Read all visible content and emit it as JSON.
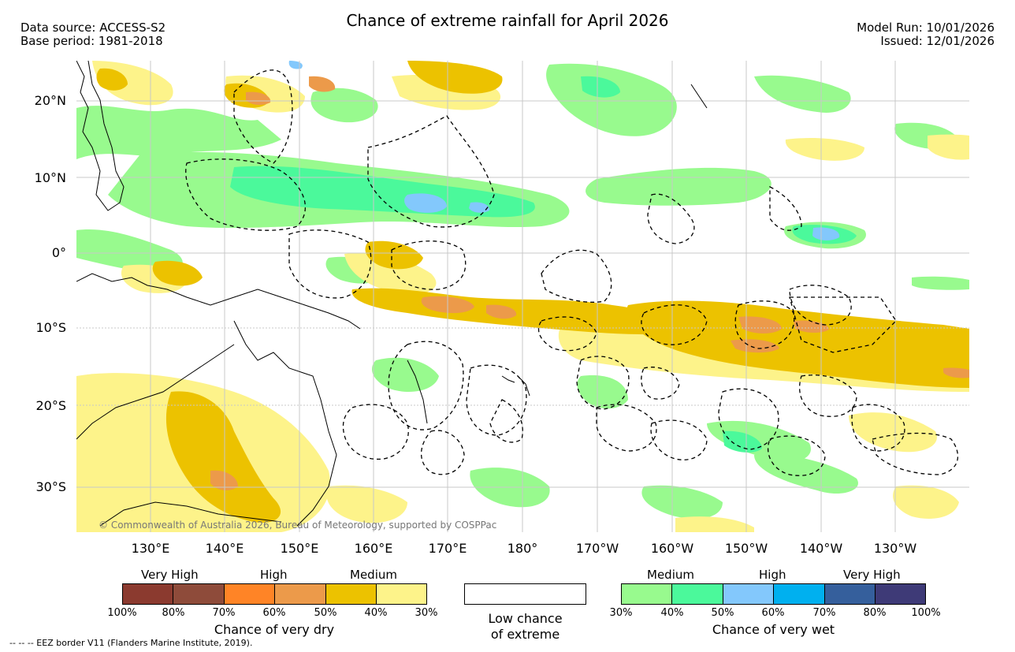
{
  "header": {
    "title": "Chance of extreme rainfall for April 2026",
    "data_source": "Data source: ACCESS-S2",
    "base_period": "Base period: 1981-2018",
    "model_run": "Model Run: 10/01/2026",
    "issued": "Issued: 12/01/2026"
  },
  "map": {
    "lat_labels": [
      "20°N",
      "10°N",
      "0°",
      "10°S",
      "20°S",
      "30°S"
    ],
    "lon_labels": [
      "130°E",
      "140°E",
      "150°E",
      "160°E",
      "170°E",
      "180°",
      "170°W",
      "160°W",
      "150°W",
      "140°W",
      "130°W"
    ],
    "copyright": "© Commonwealth of Australia 2026, Bureau of Meteorology, supported by COSPPac"
  },
  "legend": {
    "dry": {
      "headings": [
        "Very High",
        "High",
        "Medium"
      ],
      "colors": [
        "#8b3a2f",
        "#8e4b3a",
        "#ff8426",
        "#ec9a4a",
        "#ecc200",
        "#fdf38a"
      ],
      "ticks": [
        "100%",
        "80%",
        "70%",
        "60%",
        "50%",
        "40%",
        "30%"
      ],
      "title": "Chance of very dry"
    },
    "low": {
      "color": "#ffffff",
      "title_line1": "Low chance",
      "title_line2": "of extreme"
    },
    "wet": {
      "headings": [
        "Medium",
        "High",
        "Very High"
      ],
      "colors": [
        "#98fa8e",
        "#4bf99b",
        "#83c8fc",
        "#00b0ef",
        "#355f9c",
        "#3e3a77"
      ],
      "ticks": [
        "30%",
        "40%",
        "50%",
        "60%",
        "70%",
        "80%",
        "100%"
      ],
      "title": "Chance of very wet"
    }
  },
  "footer": {
    "eez_note": "--  --  -- EEZ border V11 (Flanders Marine Institute, 2019)."
  }
}
